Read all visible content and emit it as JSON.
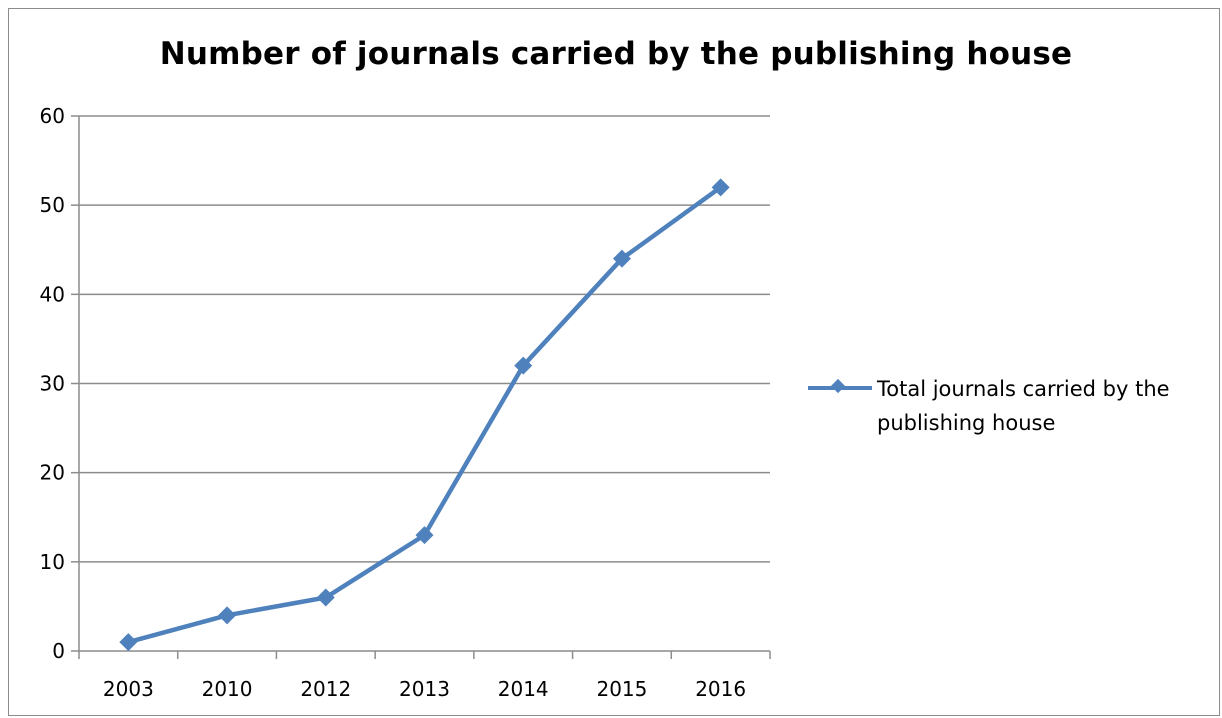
{
  "chart_data": {
    "type": "line",
    "title": "Number of journals carried by the publishing house",
    "xlabel": "",
    "ylabel": "",
    "categories": [
      "2003",
      "2010",
      "2012",
      "2013",
      "2014",
      "2015",
      "2016"
    ],
    "series": [
      {
        "name": "Total journals carried by the publishing house",
        "values": [
          1,
          4,
          6,
          13,
          32,
          44,
          52
        ],
        "color": "#4f81bd",
        "marker": "diamond"
      }
    ],
    "ylim": [
      0,
      60
    ],
    "yticks": [
      0,
      10,
      20,
      30,
      40,
      50,
      60
    ],
    "grid": "horizontal",
    "legend": "right"
  }
}
